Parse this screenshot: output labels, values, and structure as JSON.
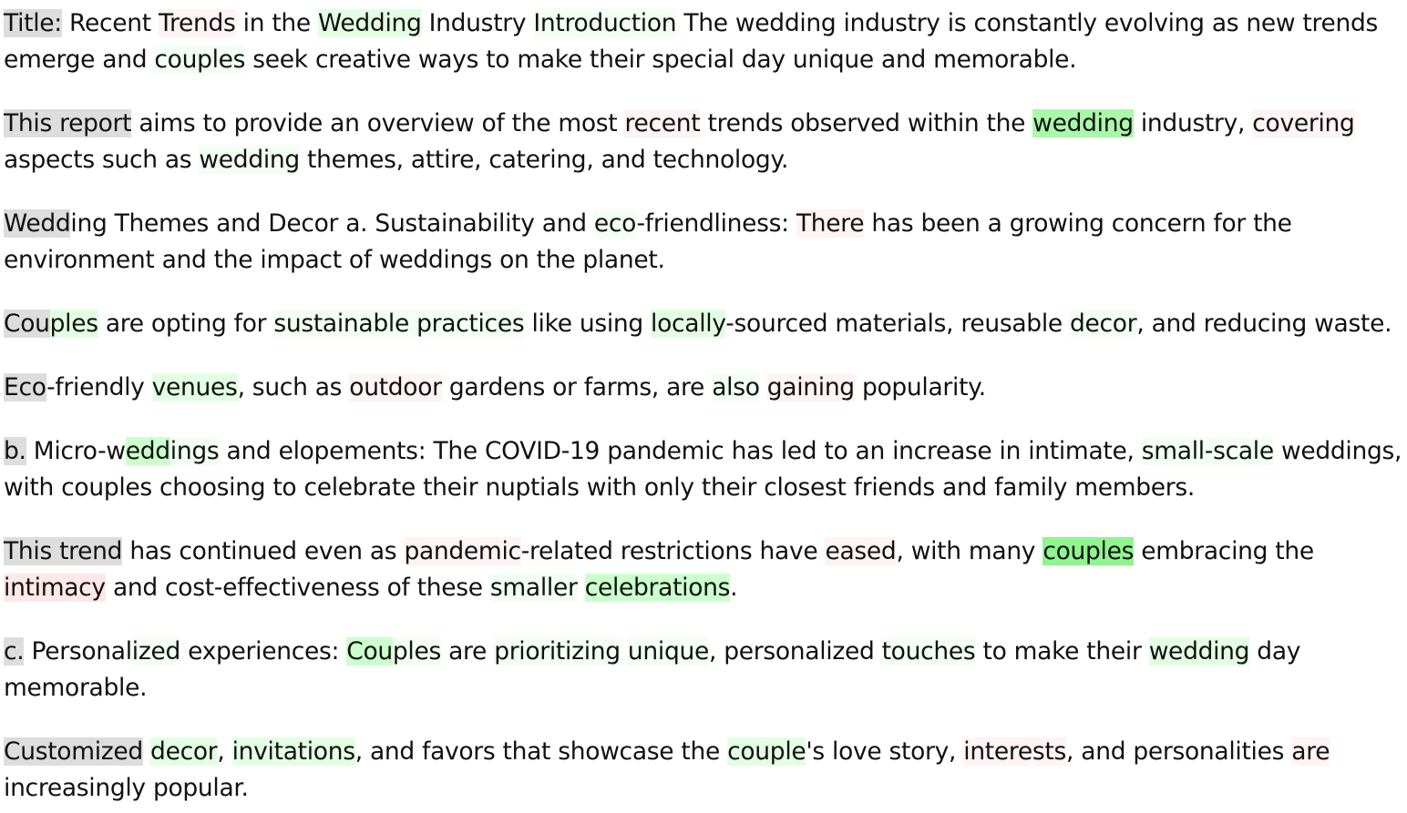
{
  "colors": {
    "gray": "#dddddd",
    "green_faint": "#f2fff2",
    "green_light": "#e3ffe3",
    "green_mid": "#ccffcc",
    "green_strong": "#aaf8aa",
    "green_strongest": "#8ff58f",
    "red_faint": "#fff3f3",
    "red_light": "#ffe8e8"
  },
  "paragraphs": [
    [
      [
        "Title:",
        "gray"
      ],
      [
        " Recent ",
        null
      ],
      [
        "Trends",
        "red_faint"
      ],
      [
        " in the ",
        null
      ],
      [
        "Wedding",
        "green_light"
      ],
      [
        " Industry ",
        null
      ],
      [
        "Introduction",
        "green_faint"
      ],
      [
        " The wedding industry is constantly evolving as new trends emerge and ",
        null
      ],
      [
        "couples",
        "green_faint"
      ],
      [
        " seek creative ways to make their special day unique and memorable.",
        null
      ]
    ],
    [
      [
        "This report",
        "gray"
      ],
      [
        " aims to provide an overview of the most ",
        null
      ],
      [
        "recent",
        "red_faint"
      ],
      [
        " trends observed within the ",
        null
      ],
      [
        "wedding",
        "green_strong"
      ],
      [
        " industry, ",
        null
      ],
      [
        "covering",
        "red_faint"
      ],
      [
        " aspects such as ",
        null
      ],
      [
        "wedding",
        "green_faint"
      ],
      [
        " themes, attire, catering, and technology.",
        null
      ]
    ],
    [
      [
        "Wedd",
        "gray"
      ],
      [
        "ing Themes and Decor a. Sustainability and ",
        null
      ],
      [
        "eco",
        "green_faint"
      ],
      [
        "-friendliness: ",
        null
      ],
      [
        "There",
        "red_faint"
      ],
      [
        " has been a growing concern for the environment and the impact of weddings on the planet.",
        null
      ]
    ],
    [
      [
        "Cou",
        "gray"
      ],
      [
        "ples",
        "green_light"
      ],
      [
        " are opting for ",
        null
      ],
      [
        "sustainable practices",
        "green_faint"
      ],
      [
        " like using ",
        null
      ],
      [
        "locally",
        "green_light"
      ],
      [
        "-sourced materials, reusable ",
        null
      ],
      [
        "decor",
        "green_faint"
      ],
      [
        ", and reducing waste.",
        null
      ]
    ],
    [
      [
        "Eco",
        "gray"
      ],
      [
        "-friendly ",
        null
      ],
      [
        "venues",
        "green_light"
      ],
      [
        ", such as ",
        null
      ],
      [
        "outdoor",
        "red_faint"
      ],
      [
        " gardens or farms, are ",
        null
      ],
      [
        "also",
        "green_faint"
      ],
      [
        " ",
        null
      ],
      [
        "gaining",
        "red_faint"
      ],
      [
        " popularity.",
        null
      ]
    ],
    [
      [
        "b.",
        "gray"
      ],
      [
        " Micro-w",
        null
      ],
      [
        "edd",
        "green_mid"
      ],
      [
        "ings",
        "green_faint"
      ],
      [
        " and elopements: The COVID-19 pandemic has led to an increase in intimate, ",
        null
      ],
      [
        "small-scale",
        "green_faint"
      ],
      [
        " weddings, with couples choosing to celebrate their nuptials with only their closest friends and family members.",
        null
      ]
    ],
    [
      [
        "This trend",
        "gray"
      ],
      [
        " has continued even as ",
        null
      ],
      [
        "pandemic",
        "red_faint"
      ],
      [
        "-related restrictions have ",
        null
      ],
      [
        "eased",
        "red_faint"
      ],
      [
        ", with many ",
        null
      ],
      [
        "couples",
        "green_strongest"
      ],
      [
        " embracing the ",
        null
      ],
      [
        "intimacy",
        "red_light"
      ],
      [
        " and cost-effectiveness of these ",
        null
      ],
      [
        "smaller",
        "green_faint"
      ],
      [
        " ",
        null
      ],
      [
        "celebrations",
        "green_mid"
      ],
      [
        ".",
        null
      ]
    ],
    [
      [
        "c.",
        "gray"
      ],
      [
        " Personal",
        null
      ],
      [
        "ized",
        "green_faint"
      ],
      [
        " experiences: ",
        null
      ],
      [
        "Cou",
        "green_mid"
      ],
      [
        "ples",
        "green_faint"
      ],
      [
        " are ",
        null
      ],
      [
        "prioritizing",
        "green_faint"
      ],
      [
        " ",
        null
      ],
      [
        "unique",
        "green_faint"
      ],
      [
        ", personalized ",
        null
      ],
      [
        "touches",
        "green_faint"
      ],
      [
        " to make their ",
        null
      ],
      [
        "wedding",
        "green_light"
      ],
      [
        " day memorable.",
        null
      ]
    ],
    [
      [
        "Customized",
        "gray"
      ],
      [
        " ",
        null
      ],
      [
        "decor",
        "green_light"
      ],
      [
        ", ",
        null
      ],
      [
        "invitations",
        "green_light"
      ],
      [
        ", and favors that showcase the ",
        null
      ],
      [
        "couple",
        "green_light"
      ],
      [
        "'s love story, ",
        null
      ],
      [
        "interests",
        "red_faint"
      ],
      [
        ", and personalities ",
        null
      ],
      [
        "are",
        "red_faint"
      ],
      [
        " increasingly popular.",
        null
      ]
    ]
  ]
}
